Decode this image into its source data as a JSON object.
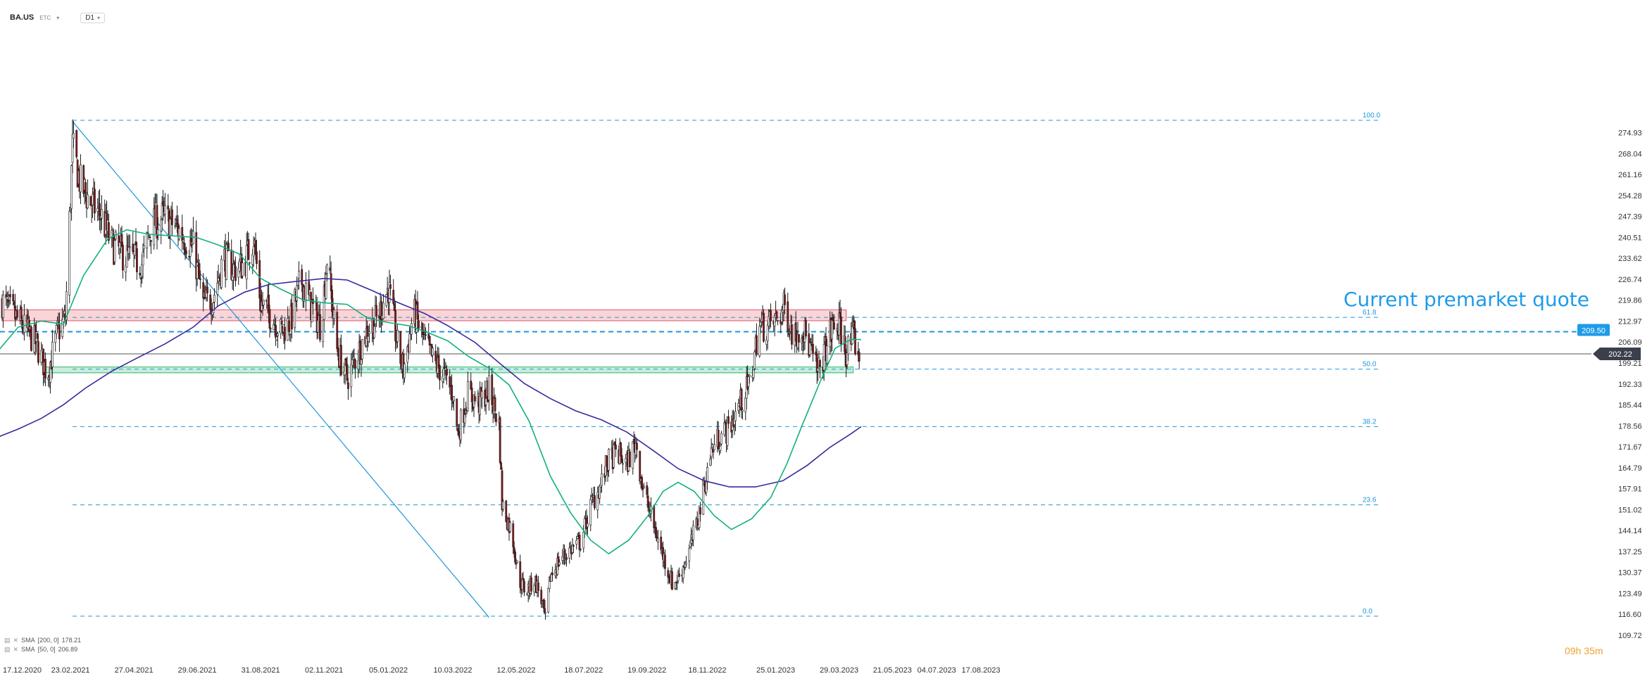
{
  "header": {
    "symbol": "BA.US",
    "exchange": "ETC",
    "timeframe": "D1"
  },
  "annotation": "Current premarket quote",
  "timer": {
    "h": "09",
    "h_unit": "h",
    "m": "35",
    "m_unit": "m"
  },
  "legend": [
    {
      "name": "SMA",
      "params": "[200, 0]",
      "value": "178.21"
    },
    {
      "name": "SMA",
      "params": "[50, 0]",
      "value": "206.89"
    }
  ],
  "colors": {
    "up": "#ffffff",
    "down": "#8b1a1a",
    "wick": "#1a1a1a",
    "sma50": "#13b07e",
    "sma200": "#3a2a9c",
    "fib": "#2196d8",
    "resistance": "#e05a6a",
    "support": "#2db36e",
    "price_badge": "#3a3f4b",
    "fib_badge": "#1e9be9"
  },
  "chart_data": {
    "type": "candlestick",
    "ylim": [
      109.72,
      278.5
    ],
    "y_ticks": [
      "274.93",
      "268.04",
      "261.16",
      "254.28",
      "247.39",
      "240.51",
      "233.62",
      "226.74",
      "219.86",
      "212.97",
      "206.09",
      "199.21",
      "192.33",
      "185.44",
      "178.56",
      "171.67",
      "164.79",
      "157.91",
      "151.02",
      "144.14",
      "137.25",
      "130.37",
      "123.49",
      "116.60",
      "109.72"
    ],
    "x_ticks": [
      {
        "date": "17.12.2020",
        "label": "17.12.2020"
      },
      {
        "date": "23.02.2021",
        "label": "23.02.2021"
      },
      {
        "date": "27.04.2021",
        "label": "27.04.2021"
      },
      {
        "date": "29.06.2021",
        "label": "29.06.2021"
      },
      {
        "date": "31.08.2021",
        "label": "31.08.2021"
      },
      {
        "date": "02.11.2021",
        "label": "02.11.2021"
      },
      {
        "date": "05.01.2022",
        "label": "05.01.2022"
      },
      {
        "date": "10.03.2022",
        "label": "10.03.2022"
      },
      {
        "date": "12.05.2022",
        "label": "12.05.2022"
      },
      {
        "date": "18.07.2022",
        "label": "18.07.2022"
      },
      {
        "date": "19.09.2022",
        "label": "19.09.2022"
      },
      {
        "date": "18.11.2022",
        "label": "18.11.2022"
      },
      {
        "date": "25.01.2023",
        "label": "25.01.2023"
      },
      {
        "date": "29.03.2023",
        "label": "29.03.2023"
      },
      {
        "date": "21.05.2023",
        "label": "21.05.2023"
      },
      {
        "date": "04.07.2023",
        "label": "04.07.2023"
      },
      {
        "date": "17.08.2023",
        "label": "17.08.2023"
      }
    ],
    "current_price": "202.22",
    "premarket_price": "209.50",
    "fib_levels": [
      {
        "label": "100.0",
        "price": 279.0
      },
      {
        "label": "61.8",
        "price": 214.2
      },
      {
        "label": "50.0",
        "price": 197.2
      },
      {
        "label": "38.2",
        "price": 178.3
      },
      {
        "label": "23.6",
        "price": 152.6
      },
      {
        "label": "0.0",
        "price": 116.0
      }
    ],
    "zones": [
      {
        "kind": "resistance",
        "from_date": "17.12.2020",
        "to_date": "05.04.2023",
        "low": 213.1,
        "high": 216.7
      },
      {
        "kind": "support",
        "from_date": "28.01.2021",
        "to_date": "12.04.2023",
        "low": 196.0,
        "high": 197.9
      }
    ],
    "trendline": [
      {
        "date": "25.02.2021",
        "price": 278.6
      },
      {
        "date": "15.04.2022",
        "price": 115.6
      }
    ],
    "sma200_path": [
      [
        "20.11.2020",
        172.6
      ],
      [
        "10.12.2020",
        174.5
      ],
      [
        "02.01.2021",
        177.5
      ],
      [
        "25.01.2021",
        181.0
      ],
      [
        "16.02.2021",
        185.5
      ],
      [
        "10.03.2021",
        191.0
      ],
      [
        "05.04.2021",
        196.5
      ],
      [
        "01.05.2021",
        201.0
      ],
      [
        "28.05.2021",
        205.5
      ],
      [
        "25.06.2021",
        211.0
      ],
      [
        "20.07.2021",
        218.0
      ],
      [
        "15.08.2021",
        222.5
      ],
      [
        "08.09.2021",
        225.0
      ],
      [
        "05.10.2021",
        226.0
      ],
      [
        "02.11.2021",
        227.0
      ],
      [
        "25.11.2021",
        226.5
      ],
      [
        "20.12.2021",
        223.0
      ],
      [
        "15.01.2022",
        219.0
      ],
      [
        "10.02.2022",
        215.5
      ],
      [
        "05.03.2022",
        211.5
      ],
      [
        "01.04.2022",
        206.0
      ],
      [
        "26.04.2022",
        199.0
      ],
      [
        "20.05.2022",
        192.5
      ],
      [
        "15.06.2022",
        187.5
      ],
      [
        "10.07.2022",
        183.5
      ],
      [
        "05.08.2022",
        180.5
      ],
      [
        "30.08.2022",
        176.5
      ],
      [
        "25.09.2022",
        170.5
      ],
      [
        "20.10.2022",
        164.5
      ],
      [
        "15.11.2022",
        160.5
      ],
      [
        "10.12.2022",
        158.5
      ],
      [
        "05.01.2023",
        158.5
      ],
      [
        "01.02.2023",
        160.5
      ],
      [
        "25.02.2023",
        165.5
      ],
      [
        "20.03.2023",
        171.5
      ],
      [
        "10.04.2023",
        176.0
      ],
      [
        "20.04.2023",
        178.3
      ]
    ],
    "sma50_path": [
      [
        "20.11.2020",
        191.0
      ],
      [
        "10.12.2020",
        202.0
      ],
      [
        "02.01.2021",
        211.0
      ],
      [
        "25.01.2021",
        213.0
      ],
      [
        "16.02.2021",
        212.0
      ],
      [
        "08.03.2021",
        228.0
      ],
      [
        "01.04.2021",
        240.0
      ],
      [
        "20.04.2021",
        243.0
      ],
      [
        "12.05.2021",
        241.5
      ],
      [
        "05.06.2021",
        241.0
      ],
      [
        "28.06.2021",
        240.5
      ],
      [
        "20.07.2021",
        238.0
      ],
      [
        "10.08.2021",
        235.0
      ],
      [
        "31.08.2021",
        227.0
      ],
      [
        "20.09.2021",
        223.5
      ],
      [
        "12.10.2021",
        220.0
      ],
      [
        "02.11.2021",
        219.0
      ],
      [
        "25.11.2021",
        218.5
      ],
      [
        "15.12.2021",
        214.0
      ],
      [
        "05.01.2022",
        212.5
      ],
      [
        "25.01.2022",
        211.5
      ],
      [
        "15.02.2022",
        209.0
      ],
      [
        "05.03.2022",
        206.5
      ],
      [
        "25.03.2022",
        201.5
      ],
      [
        "15.04.2022",
        197.5
      ],
      [
        "05.05.2022",
        192.0
      ],
      [
        "25.05.2022",
        180.0
      ],
      [
        "15.06.2022",
        162.0
      ],
      [
        "05.07.2022",
        150.0
      ],
      [
        "25.07.2022",
        141.0
      ],
      [
        "12.08.2022",
        136.5
      ],
      [
        "01.09.2022",
        141.0
      ],
      [
        "20.09.2022",
        149.0
      ],
      [
        "05.10.2022",
        157.0
      ],
      [
        "20.10.2022",
        160.0
      ],
      [
        "05.11.2022",
        157.0
      ],
      [
        "25.11.2022",
        149.0
      ],
      [
        "12.12.2022",
        144.5
      ],
      [
        "01.01.2023",
        148.0
      ],
      [
        "20.01.2023",
        155.0
      ],
      [
        "05.02.2023",
        166.0
      ],
      [
        "20.02.2023",
        178.5
      ],
      [
        "10.03.2023",
        193.0
      ],
      [
        "25.03.2023",
        204.0
      ],
      [
        "10.04.2023",
        207.0
      ],
      [
        "20.04.2023",
        206.9
      ]
    ],
    "price_path": [
      [
        "17.12.2020",
        219.5
      ],
      [
        "05.01.2021",
        212.0
      ],
      [
        "20.01.2021",
        205.5
      ],
      [
        "31.01.2021",
        195.5
      ],
      [
        "10.02.2021",
        209.0
      ],
      [
        "18.02.2021",
        214.0
      ],
      [
        "25.02.2021",
        270.0
      ],
      [
        "05.03.2021",
        258.0
      ],
      [
        "15.03.2021",
        252.0
      ],
      [
        "25.03.2021",
        248.0
      ],
      [
        "05.04.2021",
        238.0
      ],
      [
        "20.04.2021",
        234.0
      ],
      [
        "05.05.2021",
        232.0
      ],
      [
        "15.05.2021",
        245.0
      ],
      [
        "25.05.2021",
        247.0
      ],
      [
        "05.06.2021",
        245.0
      ],
      [
        "15.06.2021",
        241.0
      ],
      [
        "25.06.2021",
        237.0
      ],
      [
        "05.07.2021",
        218.5
      ],
      [
        "15.07.2021",
        221.0
      ],
      [
        "25.07.2021",
        234.0
      ],
      [
        "05.08.2021",
        230.0
      ],
      [
        "15.08.2021",
        232.0
      ],
      [
        "24.08.2021",
        240.5
      ],
      [
        "31.08.2021",
        219.0
      ],
      [
        "10.09.2021",
        215.0
      ],
      [
        "20.09.2021",
        209.5
      ],
      [
        "30.09.2021",
        213.0
      ],
      [
        "10.10.2021",
        227.0
      ],
      [
        "20.10.2021",
        218.0
      ],
      [
        "30.10.2021",
        211.0
      ],
      [
        "05.11.2021",
        234.0
      ],
      [
        "15.11.2021",
        203.5
      ],
      [
        "25.11.2021",
        194.0
      ],
      [
        "05.12.2021",
        202.0
      ],
      [
        "15.12.2021",
        210.0
      ],
      [
        "25.12.2021",
        214.0
      ],
      [
        "05.01.2022",
        224.0
      ],
      [
        "15.01.2022",
        203.0
      ],
      [
        "20.01.2022",
        197.0
      ],
      [
        "30.01.2022",
        216.0
      ],
      [
        "10.02.2022",
        206.0
      ],
      [
        "20.02.2022",
        199.0
      ],
      [
        "28.02.2022",
        196.0
      ],
      [
        "10.03.2022",
        189.0
      ],
      [
        "15.03.2022",
        176.0
      ],
      [
        "25.03.2022",
        189.0
      ],
      [
        "05.04.2022",
        186.0
      ],
      [
        "15.04.2022",
        190.5
      ],
      [
        "25.04.2022",
        179.0
      ],
      [
        "28.04.2022",
        153.0
      ],
      [
        "08.05.2022",
        143.0
      ],
      [
        "15.05.2022",
        128.0
      ],
      [
        "22.05.2022",
        124.0
      ],
      [
        "30.05.2022",
        128.0
      ],
      [
        "05.06.2022",
        123.0
      ],
      [
        "10.06.2022",
        114.5
      ],
      [
        "15.06.2022",
        129.0
      ],
      [
        "25.06.2022",
        135.0
      ],
      [
        "05.07.2022",
        138.0
      ],
      [
        "15.07.2022",
        140.5
      ],
      [
        "25.07.2022",
        152.0
      ],
      [
        "05.08.2022",
        160.0
      ],
      [
        "10.08.2022",
        166.0
      ],
      [
        "20.08.2022",
        170.0
      ],
      [
        "30.08.2022",
        166.0
      ],
      [
        "08.09.2022",
        173.0
      ],
      [
        "15.09.2022",
        158.0
      ],
      [
        "22.09.2022",
        150.0
      ],
      [
        "30.09.2022",
        141.0
      ],
      [
        "08.10.2022",
        133.0
      ],
      [
        "15.10.2022",
        126.0
      ],
      [
        "22.10.2022",
        130.0
      ],
      [
        "30.10.2022",
        136.5
      ],
      [
        "08.11.2022",
        147.0
      ],
      [
        "15.11.2022",
        159.0
      ],
      [
        "22.11.2022",
        170.5
      ],
      [
        "30.11.2022",
        175.0
      ],
      [
        "10.12.2022",
        178.0
      ],
      [
        "20.12.2022",
        185.5
      ],
      [
        "31.12.2022",
        193.0
      ],
      [
        "08.01.2023",
        211.5
      ],
      [
        "15.01.2023",
        211.0
      ],
      [
        "25.01.2023",
        213.0
      ],
      [
        "03.02.2023",
        217.5
      ],
      [
        "12.02.2023",
        208.0
      ],
      [
        "20.02.2023",
        211.5
      ],
      [
        "28.02.2023",
        204.0
      ],
      [
        "08.03.2023",
        195.5
      ],
      [
        "15.03.2023",
        203.5
      ],
      [
        "22.03.2023",
        210.5
      ],
      [
        "29.03.2023",
        211.5
      ],
      [
        "05.04.2023",
        203.0
      ],
      [
        "12.04.2023",
        207.5
      ],
      [
        "18.04.2023",
        202.2
      ]
    ]
  }
}
